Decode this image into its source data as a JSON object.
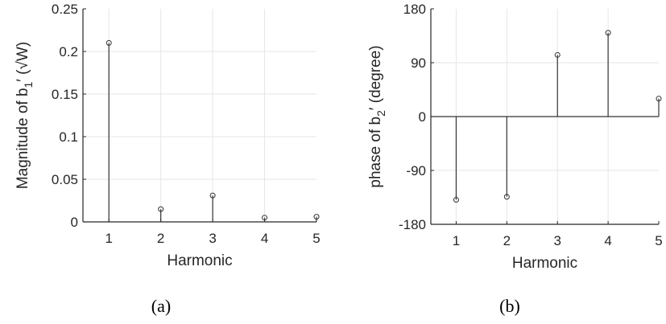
{
  "colors": {
    "axis": "#262626",
    "grid": "#e6e6e6",
    "stem": "#333333",
    "background": "#ffffff"
  },
  "chart_data": [
    {
      "type": "stem",
      "caption": "(a)",
      "xlabel": "Harmonic",
      "ylabel_text": "Magnitude of b",
      "ylabel_sub": "1",
      "ylabel_suffix": "′ (√W)",
      "x": [
        1,
        2,
        3,
        4,
        5
      ],
      "y": [
        0.21,
        0.015,
        0.031,
        0.005,
        0.006
      ],
      "xlim": [
        0.5,
        5
      ],
      "ylim": [
        0,
        0.25
      ],
      "xticks": [
        1,
        2,
        3,
        4,
        5
      ],
      "yticks": [
        0,
        0.05,
        0.1,
        0.15,
        0.2,
        0.25
      ],
      "ytick_labels": [
        "0",
        "0.05",
        "0.1",
        "0.15",
        "0.2",
        "0.25"
      ],
      "grid": true
    },
    {
      "type": "stem",
      "caption": "(b)",
      "xlabel": "Harmonic",
      "ylabel_text": "phase of b",
      "ylabel_sub": "2",
      "ylabel_suffix": "′ (degree)",
      "x": [
        1,
        2,
        3,
        4,
        5
      ],
      "y": [
        -139,
        -134,
        103,
        140,
        30
      ],
      "xlim": [
        0.5,
        5
      ],
      "ylim": [
        -180,
        180
      ],
      "xticks": [
        1,
        2,
        3,
        4,
        5
      ],
      "yticks": [
        -180,
        -90,
        0,
        90,
        180
      ],
      "ytick_labels": [
        "-180",
        "-90",
        "0",
        "90",
        "180"
      ],
      "grid": true
    }
  ]
}
